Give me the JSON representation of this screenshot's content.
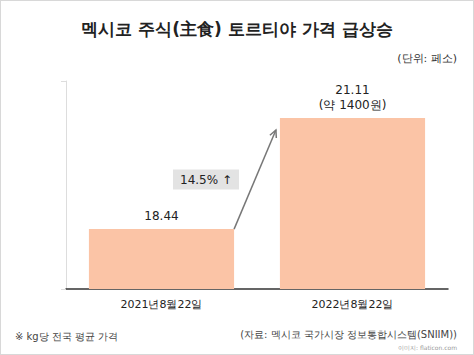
{
  "chart_data": {
    "type": "bar",
    "title": "멕시코 주식(主食) 토르티야 가격 급상승",
    "subtitle": "(단위: 페소)",
    "categories": [
      "2021년8월22일",
      "2022년8월22일"
    ],
    "values": [
      18.44,
      21.11
    ],
    "value_labels": [
      "18.44",
      "21.11\n(약 1400원)"
    ],
    "color": "#fbc4a6",
    "ylim": [
      17,
      22
    ],
    "yticks": [
      17,
      22
    ],
    "tick_labels": "x",
    "grid": false,
    "data_labels": true,
    "annotation": "14.5% ↑",
    "footnote": "※ kg당 전국 평균 가격",
    "source": "(자료: 멕시코 국가시장 정보통합시스템(SNIIM))",
    "credit": "이미지: flaticon.com"
  }
}
